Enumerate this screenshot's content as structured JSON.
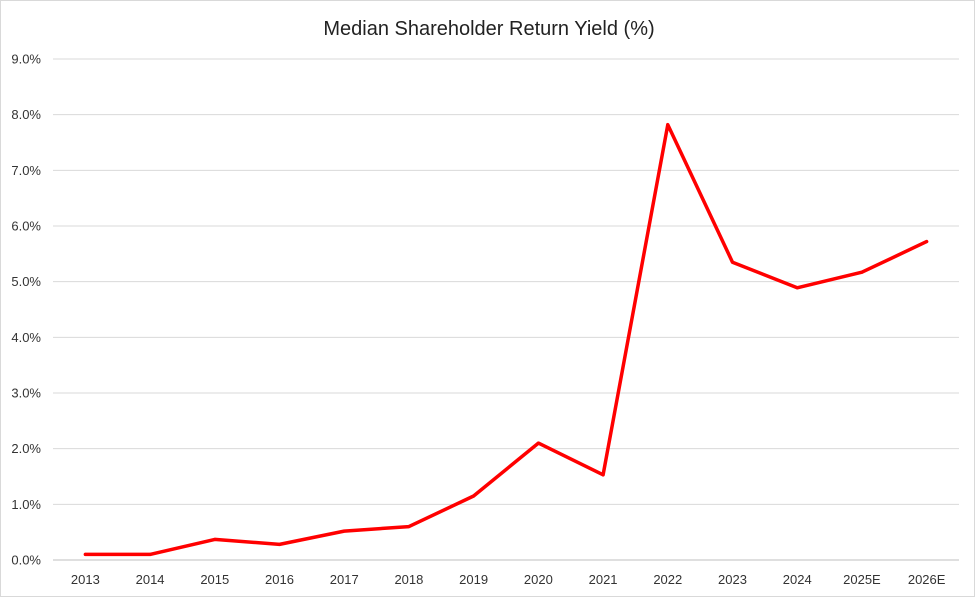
{
  "chart_data": {
    "type": "line",
    "title": "Median Shareholder Return Yield (%)",
    "xlabel": "",
    "ylabel": "",
    "categories": [
      "2013",
      "2014",
      "2015",
      "2016",
      "2017",
      "2018",
      "2019",
      "2020",
      "2021",
      "2022",
      "2023",
      "2024",
      "2025E",
      "2026E"
    ],
    "series": [
      {
        "values": [
          0.1,
          0.1,
          0.37,
          0.28,
          0.52,
          0.6,
          1.15,
          2.1,
          1.53,
          7.82,
          5.35,
          4.89,
          5.17,
          5.72
        ],
        "color": "#ff0000"
      }
    ],
    "ylim": [
      0,
      9
    ],
    "y_ticks": [
      "0.0%",
      "1.0%",
      "2.0%",
      "3.0%",
      "4.0%",
      "5.0%",
      "6.0%",
      "7.0%",
      "8.0%",
      "9.0%"
    ],
    "grid": "horizontal",
    "legend": "none"
  }
}
